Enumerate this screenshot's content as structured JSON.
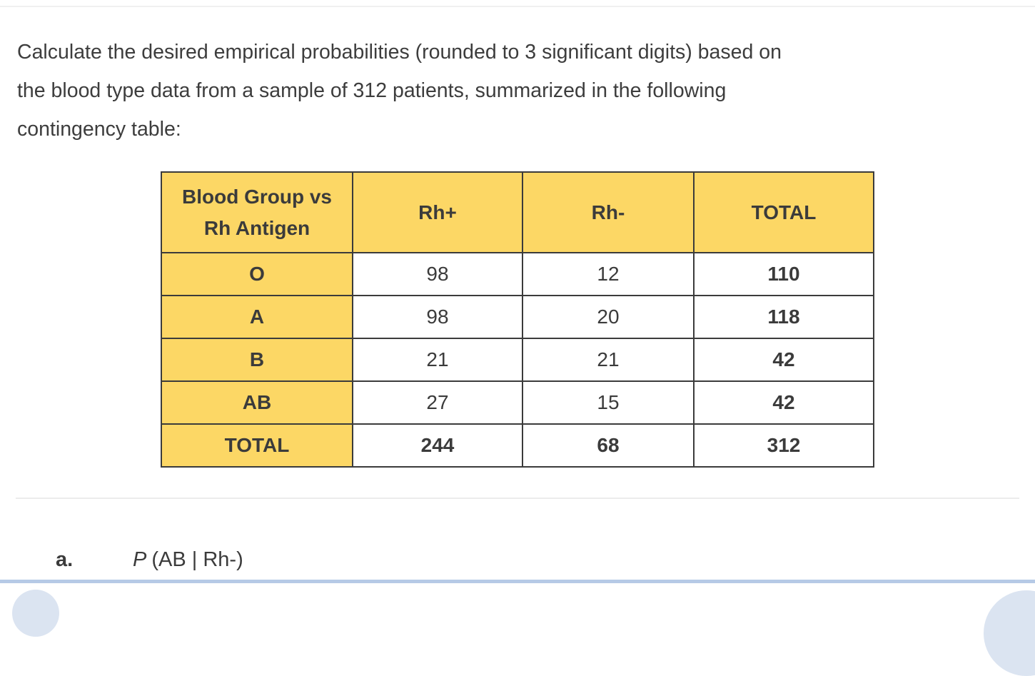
{
  "question": {
    "lines": [
      "Calculate the desired empirical probabilities (rounded to 3 significant digits) based on",
      "the blood type data from a sample of 312 patients, summarized in the following",
      "contingency table:"
    ]
  },
  "table": {
    "headers": [
      "Blood Group vs Rh Antigen",
      "Rh+",
      "Rh-",
      "TOTAL"
    ],
    "rows": [
      {
        "label": "O",
        "rh_pos": "98",
        "rh_neg": "12",
        "total": "110"
      },
      {
        "label": "A",
        "rh_pos": "98",
        "rh_neg": "20",
        "total": "118"
      },
      {
        "label": "B",
        "rh_pos": "21",
        "rh_neg": "21",
        "total": "42"
      },
      {
        "label": "AB",
        "rh_pos": "27",
        "rh_neg": "15",
        "total": "42"
      },
      {
        "label": "TOTAL",
        "rh_pos": "244",
        "rh_neg": "68",
        "total": "312"
      }
    ]
  },
  "subquestion": {
    "marker": "a.",
    "probability_function": "P",
    "probability_args": "(AB | Rh-)"
  },
  "colors": {
    "table_header_bg": "#fcd765",
    "table_border": "#3b3b3b",
    "text": "#3d3d3d",
    "divider": "#ececec",
    "bottom_bar": "#b6cae6",
    "corner_bubble": "#dbe4f1"
  }
}
